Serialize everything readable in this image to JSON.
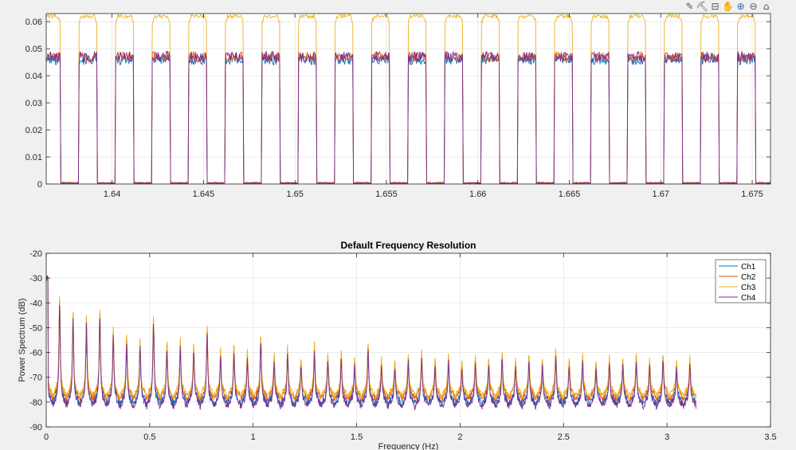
{
  "toolbar": {
    "icons": [
      {
        "name": "data-tips-icon",
        "glyph": "✎"
      },
      {
        "name": "brush-icon",
        "glyph": "⛏"
      },
      {
        "name": "export-icon",
        "glyph": "⊟"
      },
      {
        "name": "pan-icon",
        "glyph": "✋"
      },
      {
        "name": "zoom-in-icon",
        "glyph": "⊕"
      },
      {
        "name": "zoom-out-icon",
        "glyph": "⊖"
      },
      {
        "name": "home-icon",
        "glyph": "⌂"
      }
    ]
  },
  "chart_data": [
    {
      "type": "line",
      "title": "",
      "xlabel": "",
      "ylabel": "",
      "xlim": [
        1.6364,
        1.676
      ],
      "ylim": [
        0,
        0.063
      ],
      "xticks": [
        1.64,
        1.645,
        1.65,
        1.655,
        1.66,
        1.665,
        1.67,
        1.675
      ],
      "yticks": [
        0,
        0.01,
        0.02,
        0.03,
        0.04,
        0.05,
        0.06
      ],
      "xtick_labels": [
        "1.64",
        "1.645",
        "1.65",
        "1.655",
        "1.66",
        "1.665",
        "1.67",
        "1.675"
      ],
      "ytick_labels": [
        "0",
        "0.01",
        "0.02",
        "0.03",
        "0.04",
        "0.05",
        "0.06"
      ],
      "grid": true,
      "pulse_period": 0.002,
      "pulse_width": 0.00097,
      "first_pulse_start": 1.6382,
      "series": [
        {
          "label": "Ch1",
          "color": "#0072bd",
          "high": 0.046,
          "low": 0.0003
        },
        {
          "label": "Ch2",
          "color": "#d95319",
          "high": 0.047,
          "low": 0.0005
        },
        {
          "label": "Ch3",
          "color": "#edb120",
          "high": 0.062,
          "low": 0.0003
        },
        {
          "label": "Ch4",
          "color": "#7e2f8e",
          "high": 0.047,
          "low": 0.0003
        }
      ]
    },
    {
      "type": "line",
      "title": "Default Frequency Resolution",
      "xlabel": "Frequency (Hz)",
      "ylabel": "Power Spectrum (dB)",
      "xlim": [
        0,
        3.5
      ],
      "ylim": [
        -90,
        -20
      ],
      "xticks": [
        0,
        0.5,
        1,
        1.5,
        2,
        2.5,
        3,
        3.5
      ],
      "yticks": [
        -90,
        -80,
        -70,
        -60,
        -50,
        -40,
        -30,
        -20
      ],
      "xtick_labels": [
        "0",
        "0.5",
        "1",
        "1.5",
        "2",
        "2.5",
        "3",
        "3.5"
      ],
      "ytick_labels": [
        "-90",
        "-80",
        "-70",
        "-60",
        "-50",
        "-40",
        "-30",
        "-20"
      ],
      "grid": true,
      "legend_position": "top-right",
      "harmonic_spacing": 0.0648,
      "x_end": 3.14,
      "peak_values_db": [
        -30,
        -36,
        -43,
        -45,
        -41,
        -50,
        -52,
        -54,
        -45,
        -55,
        -54,
        -56,
        -49,
        -58,
        -56,
        -59,
        -52,
        -60,
        -57,
        -62,
        -56,
        -60,
        -59,
        -62,
        -55,
        -62,
        -63,
        -60,
        -59,
        -62,
        -60,
        -63,
        -61,
        -62,
        -59,
        -62,
        -60,
        -62,
        -58,
        -62,
        -60,
        -63,
        -61,
        -62,
        -60,
        -62,
        -60,
        -63,
        -61
      ],
      "series": [
        {
          "label": "Ch1",
          "color": "#0072bd",
          "floor_db": -81
        },
        {
          "label": "Ch2",
          "color": "#d95319",
          "floor_db": -79
        },
        {
          "label": "Ch3",
          "color": "#edb120",
          "floor_db": -78
        },
        {
          "label": "Ch4",
          "color": "#7e2f8e",
          "floor_db": -82
        }
      ]
    }
  ]
}
